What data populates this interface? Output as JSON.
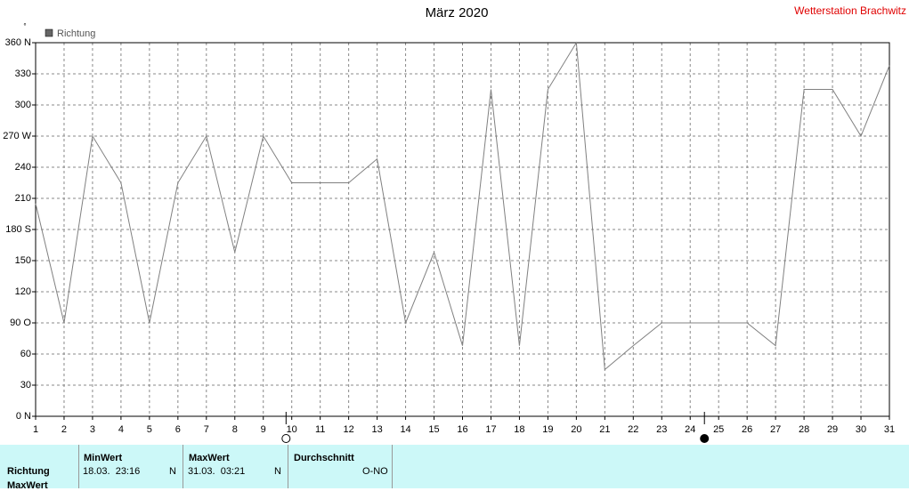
{
  "chart_data": {
    "type": "line",
    "title": "März 2020",
    "station": "Wetterstation Brachwitz",
    "unit": "°",
    "x": [
      1,
      2,
      3,
      4,
      5,
      6,
      7,
      8,
      9,
      10,
      11,
      12,
      13,
      14,
      15,
      16,
      17,
      18,
      19,
      20,
      21,
      22,
      23,
      24,
      25,
      26,
      27,
      28,
      29,
      30,
      31
    ],
    "series": [
      {
        "name": "Richtung",
        "color": "#808080",
        "values": [
          205,
          90,
          270,
          225,
          90,
          225,
          270,
          158,
          270,
          225,
          225,
          225,
          248,
          90,
          158,
          68,
          315,
          68,
          315,
          360,
          45,
          68,
          90,
          90,
          90,
          90,
          68,
          315,
          315,
          270,
          338
        ]
      }
    ],
    "xlim": [
      1,
      31
    ],
    "xticks": [
      1,
      2,
      3,
      4,
      5,
      6,
      7,
      8,
      9,
      10,
      11,
      12,
      13,
      14,
      15,
      16,
      17,
      18,
      19,
      20,
      21,
      22,
      23,
      24,
      25,
      26,
      27,
      28,
      29,
      30,
      31
    ],
    "ylim": [
      0,
      360
    ],
    "yticks": [
      {
        "value": 0,
        "label": "0 N"
      },
      30,
      60,
      {
        "value": 90,
        "label": "90 O"
      },
      120,
      150,
      {
        "value": 180,
        "label": "180 S"
      },
      210,
      240,
      {
        "value": 270,
        "label": "270 W"
      },
      300,
      330,
      {
        "value": 360,
        "label": "360 N"
      }
    ],
    "grid": true,
    "full_moon_x": 9.8,
    "new_moon_x": 24.5
  },
  "table": {
    "row_label": "Richtung",
    "row_label_2": "MaxWert",
    "columns": [
      {
        "header": "MinWert",
        "time": "18.03.  23:16",
        "dir": "N"
      },
      {
        "header": "MaxWert",
        "time": "31.03.  03:21",
        "dir": "N"
      },
      {
        "header": "Durchschnitt",
        "time": "",
        "dir": "O-NO"
      }
    ]
  }
}
